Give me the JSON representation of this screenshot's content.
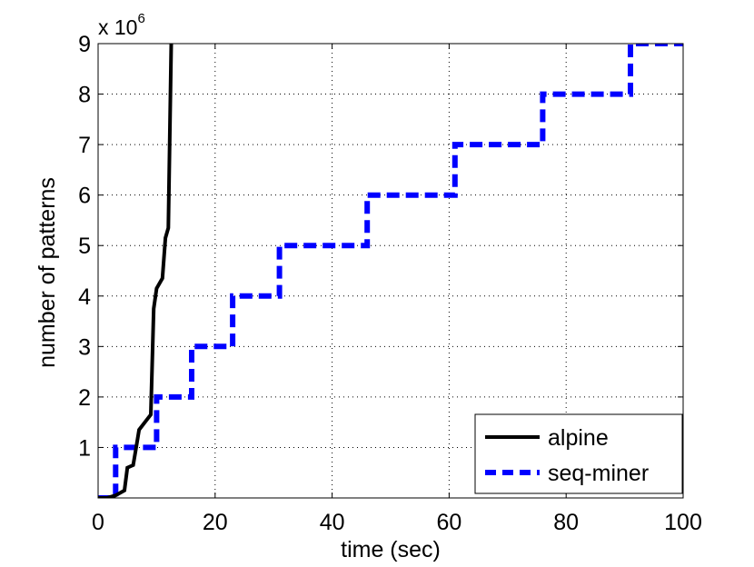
{
  "chart_data": {
    "type": "line",
    "xlabel": "time (sec)",
    "ylabel": "number of patterns",
    "y_multiplier_label": "x 10",
    "y_multiplier_exponent": "6",
    "xlim": [
      0,
      100
    ],
    "ylim": [
      0,
      9
    ],
    "x_ticks": [
      "0",
      "20",
      "40",
      "60",
      "80",
      "100"
    ],
    "y_ticks": [
      "1",
      "2",
      "3",
      "4",
      "5",
      "6",
      "7",
      "8",
      "9"
    ],
    "grid": true,
    "legend_position": "bottom-right",
    "series": [
      {
        "name": "alpine",
        "color": "#000000",
        "style": "solid",
        "points": [
          [
            0,
            0
          ],
          [
            1.5,
            0
          ],
          [
            3,
            0.05
          ],
          [
            4.5,
            0.15
          ],
          [
            5,
            0.6
          ],
          [
            6,
            0.65
          ],
          [
            6.5,
            1
          ],
          [
            7,
            1.35
          ],
          [
            8,
            1.5
          ],
          [
            9,
            1.65
          ],
          [
            9.5,
            3.75
          ],
          [
            10,
            4.15
          ],
          [
            11,
            4.35
          ],
          [
            11.5,
            5.15
          ],
          [
            12,
            5.35
          ],
          [
            12.5,
            9
          ],
          [
            12.6,
            9.2
          ]
        ]
      },
      {
        "name": "seq-miner",
        "color": "#0000ff",
        "style": "dashed",
        "points": [
          [
            0,
            0
          ],
          [
            3,
            0
          ],
          [
            3,
            1
          ],
          [
            10,
            1
          ],
          [
            10,
            2
          ],
          [
            16,
            2
          ],
          [
            16,
            3
          ],
          [
            23,
            3
          ],
          [
            23,
            4
          ],
          [
            31,
            4
          ],
          [
            31,
            5
          ],
          [
            46,
            5
          ],
          [
            46,
            6
          ],
          [
            61,
            6
          ],
          [
            61,
            7
          ],
          [
            76,
            7
          ],
          [
            76,
            8
          ],
          [
            91,
            8
          ],
          [
            91,
            9
          ],
          [
            100,
            9
          ]
        ]
      }
    ]
  }
}
